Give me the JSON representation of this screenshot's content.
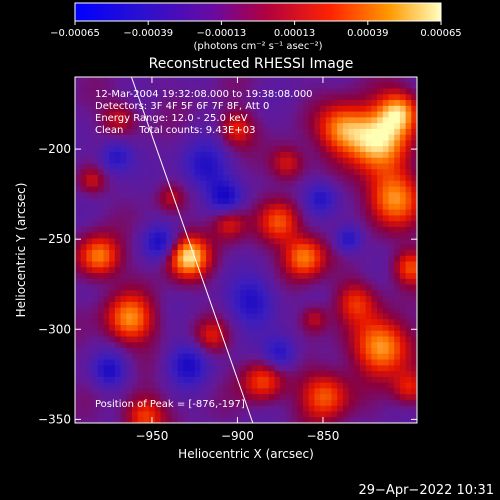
{
  "chart_data": {
    "type": "heatmap",
    "title": "Reconstructed RHESSI Image",
    "xlabel": "Heliocentric X (arcsec)",
    "ylabel": "Heliocentric Y (arcsec)",
    "xlim": [
      -995,
      -795
    ],
    "ylim": [
      -352,
      -160
    ],
    "x_ticks": [
      -950,
      -900,
      -850
    ],
    "x_tick_labels": [
      "-950",
      "-900",
      "-850"
    ],
    "y_ticks": [
      -200,
      -250,
      -300,
      -350
    ],
    "y_tick_labels": [
      "-200",
      "-250",
      "-300",
      "-350"
    ],
    "colorbar": {
      "range": [
        -0.00065,
        0.00065
      ],
      "ticks": [
        -0.00065,
        -0.00039,
        -0.00013,
        0.00013,
        0.00039,
        0.00065
      ],
      "tick_labels": [
        "-0.00065",
        "-0.00039",
        "-0.00013",
        "0.00013",
        "0.00039",
        "0.00065"
      ],
      "units": "(photons cm⁻² s⁻¹ asec⁻²)"
    },
    "annotations": [
      "12-Mar-2004 19:32:08.000 to 19:38:08.000",
      "Detectors: 3F 4F 5F 6F 7F 8F, Att 0",
      "Energy Range: 12.0 - 25.0 keV",
      "Clean     Total counts: 9.43E+03"
    ],
    "peak_label": "Position of Peak = [-876,-197]",
    "limb_line": {
      "x": [
        -962,
        -891
      ],
      "y": [
        -160,
        -352
      ]
    },
    "colors": {
      "low": "#0000ff",
      "mid": "#550099",
      "high": "#ff2200",
      "top": "#ffff88"
    }
  },
  "footer": {
    "date": "29-Apr-2022 10:31"
  }
}
